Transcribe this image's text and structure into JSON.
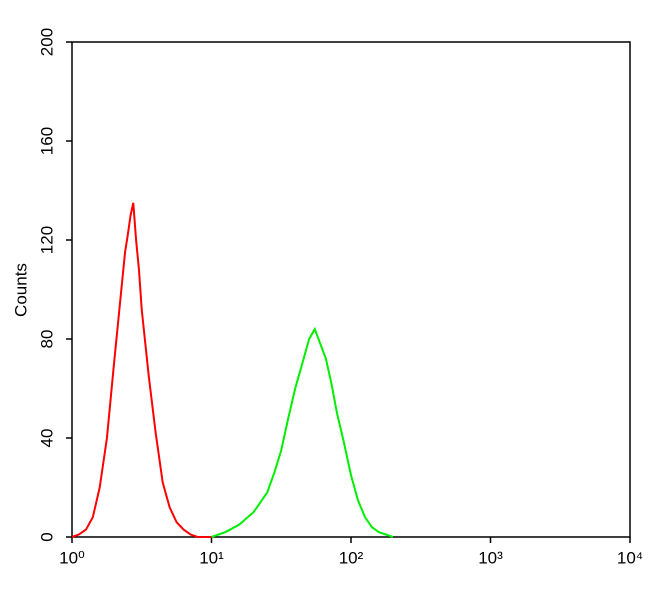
{
  "chart_data": {
    "type": "line",
    "y_label": "Counts",
    "log_x": true,
    "xlim": [
      1,
      10000
    ],
    "xticks": [
      {
        "value": 1,
        "label": "10⁰"
      },
      {
        "value": 10,
        "label": "10¹"
      },
      {
        "value": 100,
        "label": "10²"
      },
      {
        "value": 1000,
        "label": "10³"
      },
      {
        "value": 10000,
        "label": "10⁴"
      }
    ],
    "ylim": [
      0,
      200
    ],
    "yticks": [
      0,
      40,
      80,
      120,
      160,
      200
    ],
    "series": [
      {
        "color": "#ff0000",
        "x": [
          1,
          1.12,
          1.26,
          1.41,
          1.58,
          1.78,
          2.0,
          2.24,
          2.4,
          2.51,
          2.63,
          2.75,
          2.88,
          3.02,
          3.16,
          3.55,
          3.98,
          4.47,
          5.01,
          5.62,
          6.31,
          7.08,
          7.94,
          10
        ],
        "values": [
          0,
          1,
          3,
          8,
          20,
          40,
          70,
          98,
          115,
          122,
          130,
          135,
          120,
          108,
          92,
          65,
          42,
          22,
          12,
          6,
          3,
          1,
          0,
          0
        ]
      },
      {
        "color": "#00ee00",
        "x": [
          10,
          12.6,
          15.8,
          20,
          25.1,
          28.2,
          31.6,
          35.5,
          39.8,
          44.7,
          50.1,
          55,
          60.3,
          66.1,
          72.4,
          79.4,
          89.1,
          100,
          112,
          126,
          141,
          158,
          200
        ],
        "values": [
          0,
          2,
          5,
          10,
          18,
          26,
          35,
          48,
          60,
          70,
          80,
          84,
          78,
          72,
          62,
          50,
          38,
          25,
          15,
          8,
          4,
          2,
          0
        ]
      }
    ]
  }
}
